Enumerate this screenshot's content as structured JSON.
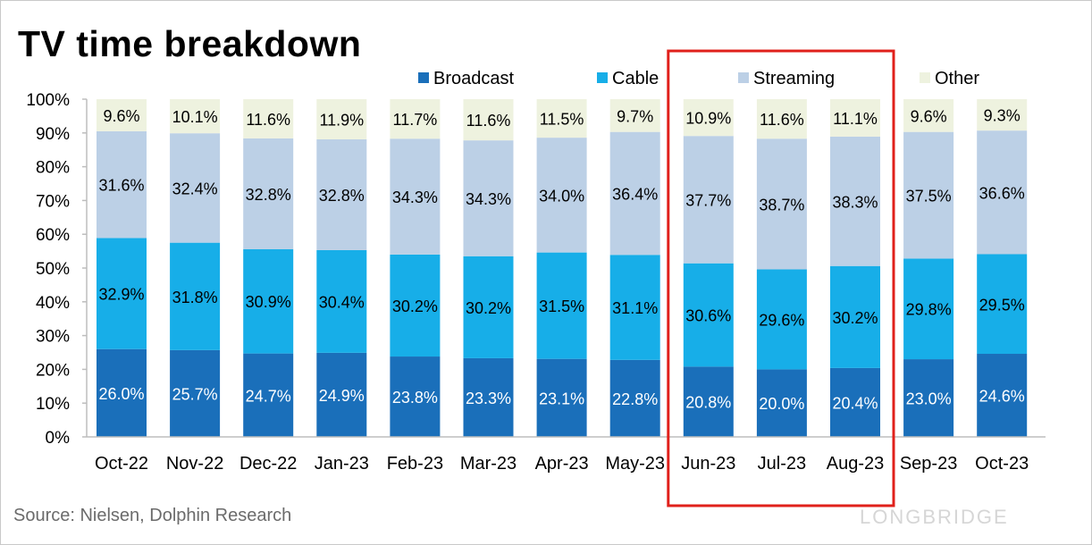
{
  "title": "TV time breakdown",
  "source": "Source:  Nielsen,  Dolphin Research",
  "watermark": "LONGBRIDGE",
  "colors": {
    "Broadcast": "#1a6fba",
    "Cable": "#17aee8",
    "Streaming": "#bcd0e6",
    "Other": "#eef2df",
    "highlight": "#e0201b",
    "axis": "#bdbdbd"
  },
  "chart_data": {
    "type": "bar",
    "stacked": true,
    "title": "TV time breakdown",
    "categories": [
      "Oct-22",
      "Nov-22",
      "Dec-22",
      "Jan-23",
      "Feb-23",
      "Mar-23",
      "Apr-23",
      "May-23",
      "Jun-23",
      "Jul-23",
      "Aug-23",
      "Sep-23",
      "Oct-23"
    ],
    "series": [
      {
        "name": "Broadcast",
        "values": [
          26.0,
          25.7,
          24.7,
          24.9,
          23.8,
          23.3,
          23.1,
          22.8,
          20.8,
          20.0,
          20.4,
          23.0,
          24.6
        ],
        "labels": [
          "26.0%",
          "25.7%",
          "24.7%",
          "24.9%",
          "23.8%",
          "23.3%",
          "23.1%",
          "22.8%",
          "20.8%",
          "20.0%",
          "20.4%",
          "23.0%",
          "24.6%"
        ]
      },
      {
        "name": "Cable",
        "values": [
          32.9,
          31.8,
          30.9,
          30.4,
          30.2,
          30.2,
          31.5,
          31.1,
          30.6,
          29.6,
          30.2,
          29.8,
          29.5
        ],
        "labels": [
          "32.9%",
          "31.8%",
          "30.9%",
          "30.4%",
          "30.2%",
          "30.2%",
          "31.5%",
          "31.1%",
          "30.6%",
          "29.6%",
          "30.2%",
          "29.8%",
          "29.5%"
        ]
      },
      {
        "name": "Streaming",
        "values": [
          31.6,
          32.4,
          32.8,
          32.8,
          34.3,
          34.3,
          34.0,
          36.4,
          37.7,
          38.7,
          38.3,
          37.5,
          36.6
        ],
        "labels": [
          "31.6%",
          "32.4%",
          "32.8%",
          "32.8%",
          "34.3%",
          "34.3%",
          "34.0%",
          "36.4%",
          "37.7%",
          "38.7%",
          "38.3%",
          "37.5%",
          "36.6%"
        ]
      },
      {
        "name": "Other",
        "values": [
          9.6,
          10.1,
          11.6,
          11.9,
          11.7,
          11.6,
          11.5,
          9.7,
          10.9,
          11.6,
          11.1,
          9.6,
          9.3
        ],
        "labels": [
          "9.6%",
          "10.1%",
          "11.6%",
          "11.9%",
          "11.7%",
          "11.6%",
          "11.5%",
          "9.7%",
          "10.9%",
          "11.6%",
          "11.1%",
          "9.6%",
          "9.3%"
        ]
      }
    ],
    "ylim": [
      0,
      100
    ],
    "yticks": [
      "0%",
      "10%",
      "20%",
      "30%",
      "40%",
      "50%",
      "60%",
      "70%",
      "80%",
      "90%",
      "100%"
    ],
    "legend": [
      "Broadcast",
      "Cable",
      "Streaming",
      "Other"
    ],
    "legend_position": "top",
    "highlight_categories": [
      "Jun-23",
      "Jul-23",
      "Aug-23"
    ],
    "grid": false
  }
}
